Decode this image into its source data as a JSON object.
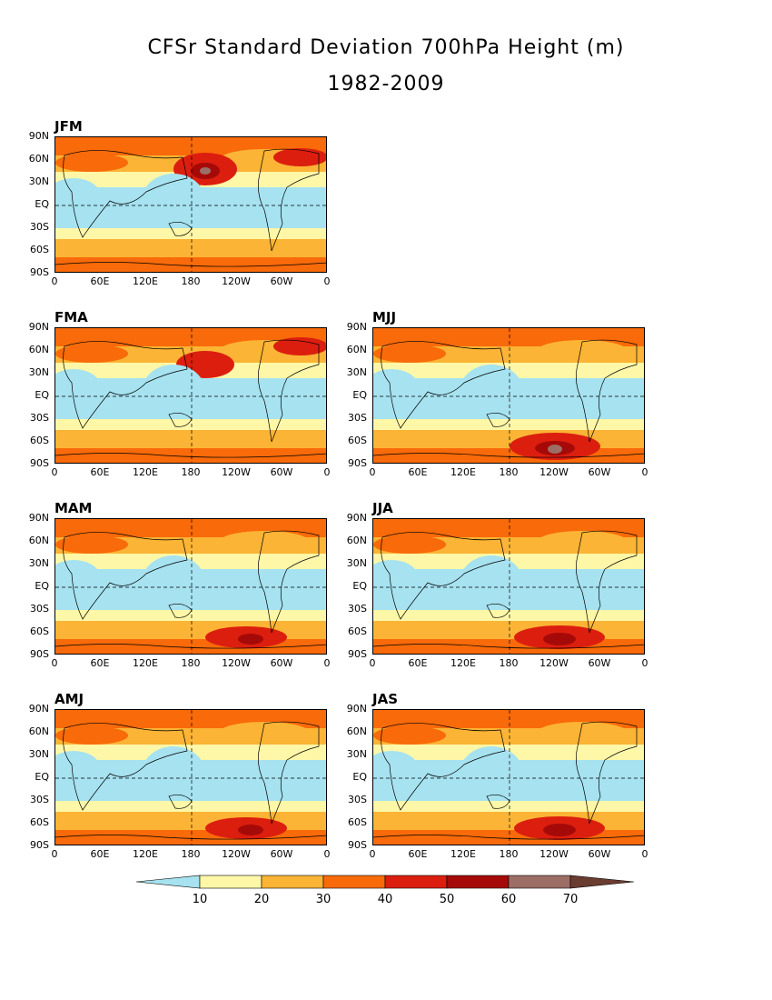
{
  "title": "CFSr Standard Deviation 700hPa Height (m)",
  "subtitle": "1982-2009",
  "lat_labels": [
    "90N",
    "60N",
    "30N",
    "EQ",
    "30S",
    "60S",
    "90S"
  ],
  "lon_labels": [
    "0",
    "60E",
    "120E",
    "180",
    "120W",
    "60W",
    "0"
  ],
  "panels": [
    {
      "label": "JFM"
    },
    {
      "label": "FMA"
    },
    {
      "label": "MJJ"
    },
    {
      "label": "MAM"
    },
    {
      "label": "JJA"
    },
    {
      "label": "AMJ"
    },
    {
      "label": "JAS"
    }
  ],
  "colorbar": {
    "levels": [
      "10",
      "20",
      "30",
      "40",
      "50",
      "60",
      "70"
    ],
    "colors": [
      "#a6e2f0",
      "#fff7a8",
      "#fbb435",
      "#f86a0a",
      "#dc1e0f",
      "#a50a08",
      "#9c6e66",
      "#6b3c30"
    ]
  }
}
